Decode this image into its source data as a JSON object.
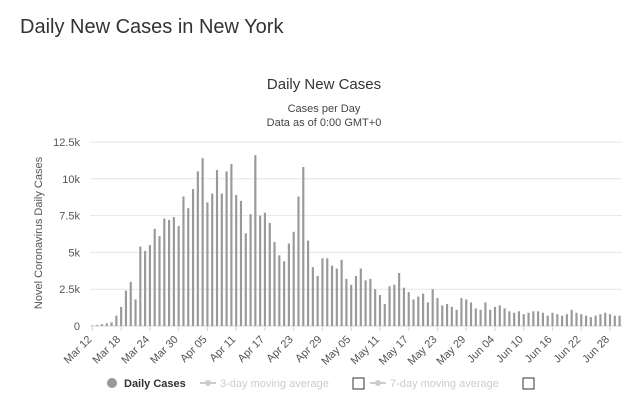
{
  "page": {
    "heading": "Daily New Cases in New York"
  },
  "colors": {
    "bar": "#999999",
    "grid": "#e6e6e6",
    "axis": "#ccd6eb",
    "legend_active": "#333333",
    "legend_inactive": "#cccccc",
    "marker": "#999999"
  },
  "chart_data": {
    "type": "bar",
    "title": "Daily New Cases",
    "subtitle_line1": "Cases per Day",
    "subtitle_line2": "Data as of 0:00 GMT+0",
    "ylabel": "Novel Coronavirus Daily Cases",
    "xlabel": "",
    "ylim": [
      0,
      12500
    ],
    "y_ticks": [
      0,
      2500,
      5000,
      7500,
      10000,
      12500
    ],
    "y_tick_labels": [
      "0",
      "2.5k",
      "5k",
      "7.5k",
      "10k",
      "12.5k"
    ],
    "x_tick_labels": [
      "Mar 12",
      "Mar 18",
      "Mar 24",
      "Mar 30",
      "Apr 05",
      "Apr 11",
      "Apr 17",
      "Apr 23",
      "Apr 29",
      "May 05",
      "May 11",
      "May 17",
      "May 23",
      "May 29",
      "Jun 04",
      "Jun 10",
      "Jun 16",
      "Jun 22",
      "Jun 28"
    ],
    "x_tick_step_days": 6,
    "categories_start": "Mar 12",
    "values": [
      30,
      60,
      120,
      180,
      250,
      700,
      1300,
      2400,
      3000,
      1800,
      5400,
      5100,
      5500,
      6600,
      6100,
      7300,
      7200,
      7400,
      6800,
      8800,
      8000,
      9300,
      10500,
      11400,
      8400,
      9000,
      10600,
      9000,
      10500,
      11000,
      8900,
      8500,
      6300,
      7600,
      11600,
      7500,
      7700,
      7000,
      5700,
      4800,
      4400,
      5600,
      6400,
      8800,
      10800,
      5800,
      4000,
      3400,
      4600,
      4600,
      4100,
      3900,
      4500,
      3200,
      2800,
      3400,
      3900,
      3100,
      3200,
      2500,
      2100,
      1500,
      2700,
      2800,
      3600,
      2600,
      2300,
      1800,
      2000,
      2200,
      1600,
      2500,
      1900,
      1400,
      1500,
      1300,
      1100,
      1900,
      1800,
      1600,
      1200,
      1100,
      1600,
      1100,
      1300,
      1400,
      1200,
      1000,
      900,
      1000,
      800,
      900,
      1000,
      1000,
      900,
      700,
      900,
      800,
      700,
      800,
      1100,
      900,
      800,
      700,
      600,
      700,
      800,
      900,
      800,
      700,
      700
    ],
    "grid": true,
    "legend_position": "bottom",
    "legend": [
      {
        "name": "Daily Cases",
        "active": true,
        "checkbox": false
      },
      {
        "name": "3-day moving average",
        "active": false,
        "checkbox": true
      },
      {
        "name": "7-day moving average",
        "active": false,
        "checkbox": true
      }
    ]
  }
}
